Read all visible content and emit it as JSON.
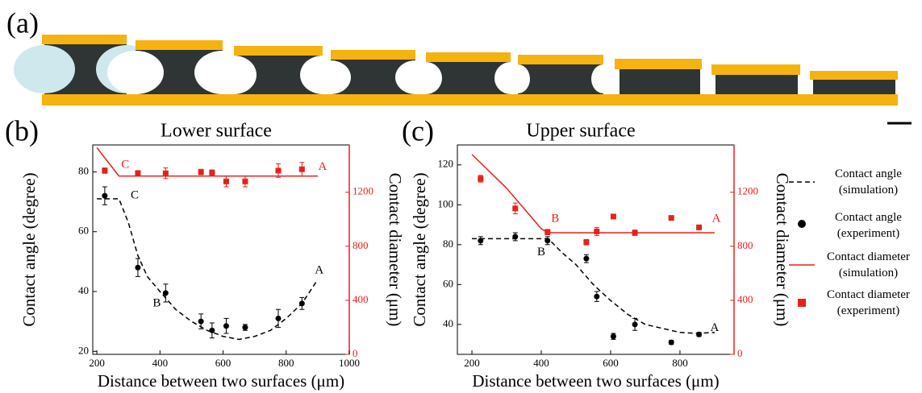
{
  "panel_labels": [
    "(a)",
    "(b)",
    "(c)"
  ],
  "chart_data": [
    {
      "type": "line",
      "title": "Lower surface",
      "x_label": "Distance between two surfaces (μm)",
      "y_label": "Contact angle (degree)",
      "y2_label": "Contact diameter (μm)",
      "xlim": [
        187,
        1000
      ],
      "xticks": [
        200,
        400,
        600,
        800,
        1000
      ],
      "ylim": [
        19,
        89
      ],
      "yticks": [
        20,
        40,
        60,
        80
      ],
      "y2lim": [
        0,
        1550
      ],
      "y2ticks": [
        0,
        400,
        800,
        1200
      ],
      "y2_color": "#e8201c",
      "series": [
        {
          "name": "Contact angle (simulation)",
          "mode": "dashed",
          "color": "#000000",
          "x": [
            200,
            270,
            300,
            330,
            360,
            400,
            450,
            500,
            550,
            600,
            650,
            700,
            750,
            800,
            850,
            900
          ],
          "values": [
            71,
            71,
            63,
            52,
            45,
            40,
            34,
            30,
            27,
            25,
            24,
            25,
            27,
            31,
            36,
            44
          ]
        },
        {
          "name": "Contact angle (experiment)",
          "mode": "circle",
          "color": "#000000",
          "x": [
            225,
            330,
            418,
            530,
            565,
            610,
            670,
            775,
            850
          ],
          "values": [
            72,
            48,
            39.5,
            30,
            27,
            28.5,
            28,
            31,
            36
          ],
          "errors": [
            3,
            3,
            3,
            2.5,
            2.5,
            2.5,
            1,
            3,
            2
          ]
        },
        {
          "name": "Contact diameter (simulation)",
          "mode": "solid",
          "color": "#e8201c",
          "axis": "y2",
          "x": [
            200,
            270,
            900
          ],
          "values": [
            1530,
            1320,
            1320
          ]
        },
        {
          "name": "Contact diameter (experiment)",
          "mode": "square",
          "color": "#e8201c",
          "axis": "y2",
          "x": [
            225,
            330,
            418,
            530,
            565,
            610,
            670,
            775,
            850
          ],
          "values": [
            1360,
            1340,
            1340,
            1350,
            1345,
            1280,
            1280,
            1360,
            1370
          ],
          "errors": [
            20,
            20,
            40,
            20,
            20,
            40,
            40,
            50,
            50
          ]
        }
      ],
      "annotations": [
        {
          "text": "C",
          "x": 290,
          "y": 1400,
          "axis": "y2",
          "color": "#e8201c"
        },
        {
          "text": "A",
          "x": 915,
          "y": 1385,
          "axis": "y2",
          "color": "#e8201c"
        },
        {
          "text": "C",
          "x": 320,
          "y": 72,
          "color": "#000000"
        },
        {
          "text": "B",
          "x": 390,
          "y": 36,
          "color": "#000000"
        },
        {
          "text": "A",
          "x": 905,
          "y": 47,
          "color": "#000000"
        }
      ]
    },
    {
      "type": "line",
      "title": "Upper surface",
      "x_label": "Distance between two surfaces (μm)",
      "y_label": "Contact angle (degree)",
      "y2_label": "Contact diameter (μm)",
      "xlim": [
        158,
        956
      ],
      "xticks": [
        200,
        400,
        600,
        800
      ],
      "ylim": [
        25,
        130
      ],
      "yticks": [
        40,
        60,
        80,
        100,
        120
      ],
      "y2lim": [
        0,
        1550
      ],
      "y2ticks": [
        0,
        400,
        800,
        1200
      ],
      "y2_color": "#e8201c",
      "series": [
        {
          "name": "Contact angle (simulation)",
          "mode": "dashed",
          "color": "#000000",
          "x": [
            200,
            420,
            460,
            500,
            550,
            600,
            650,
            700,
            750,
            800,
            850,
            900
          ],
          "values": [
            83,
            83,
            76,
            70,
            60,
            52,
            45,
            40,
            38,
            36,
            35.5,
            36
          ]
        },
        {
          "name": "Contact angle (experiment)",
          "mode": "circle",
          "color": "#000000",
          "x": [
            225,
            325,
            418,
            530,
            560,
            608,
            670,
            775,
            855
          ],
          "values": [
            82,
            84,
            82,
            73,
            54,
            34,
            40,
            31,
            35
          ],
          "errors": [
            2,
            2,
            2,
            2,
            2.5,
            1.5,
            3,
            1,
            1
          ]
        },
        {
          "name": "Contact diameter (simulation)",
          "mode": "solid",
          "color": "#e8201c",
          "axis": "y2",
          "x": [
            200,
            300,
            400,
            420,
            900
          ],
          "values": [
            1480,
            1230,
            930,
            900,
            900
          ]
        },
        {
          "name": "Contact diameter (experiment)",
          "mode": "square",
          "color": "#e8201c",
          "axis": "y2",
          "x": [
            225,
            325,
            418,
            530,
            560,
            608,
            670,
            775,
            855
          ],
          "values": [
            1300,
            1080,
            905,
            830,
            910,
            1020,
            900,
            1010,
            940
          ],
          "errors": [
            25,
            40,
            20,
            20,
            30,
            15,
            20,
            15,
            15
          ]
        }
      ],
      "annotations": [
        {
          "text": "B",
          "x": 440,
          "y": 1000,
          "axis": "y2",
          "color": "#e8201c"
        },
        {
          "text": "A",
          "x": 905,
          "y": 1000,
          "axis": "y2",
          "color": "#e8201c"
        },
        {
          "text": "B",
          "x": 400,
          "y": 76,
          "color": "#000000"
        },
        {
          "text": "A",
          "x": 900,
          "y": 38,
          "color": "#000000"
        }
      ]
    }
  ]
}
